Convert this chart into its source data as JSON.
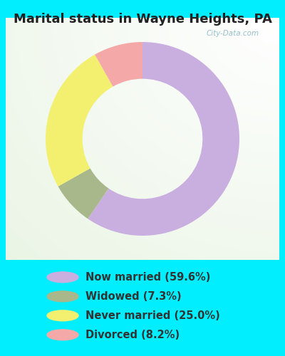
{
  "title": "Marital status in Wayne Heights, PA",
  "slices": [
    59.6,
    7.3,
    25.0,
    8.2
  ],
  "labels": [
    "Now married (59.6%)",
    "Widowed (7.3%)",
    "Never married (25.0%)",
    "Divorced (8.2%)"
  ],
  "colors": [
    "#c9aee0",
    "#a8b88a",
    "#f2f06e",
    "#f5a8a8"
  ],
  "bg_outer": "#00eeff",
  "title_fontsize": 13,
  "legend_fontsize": 10.5,
  "watermark": "City-Data.com",
  "title_color": "#222222",
  "legend_text_color": "#333333"
}
